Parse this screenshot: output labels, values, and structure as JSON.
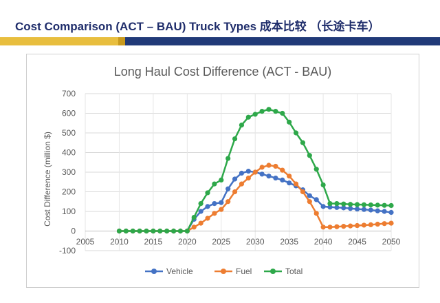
{
  "slide": {
    "title": "Cost Comparison (ACT – BAU) Truck Types 成本比较 （长途卡车）"
  },
  "chart_data": {
    "type": "line",
    "title": "Long Haul Cost Difference (ACT - BAU)",
    "xlabel": "",
    "ylabel": "Cost Difference (million $)",
    "xlim": [
      2005,
      2050
    ],
    "ylim": [
      -100,
      700
    ],
    "x_ticks": [
      "2005",
      "2010",
      "2015",
      "2020",
      "2025",
      "2030",
      "2035",
      "2040",
      "2045",
      "2050"
    ],
    "y_ticks": [
      "-100",
      "0",
      "100",
      "200",
      "300",
      "400",
      "500",
      "600",
      "700"
    ],
    "grid": "horizontal",
    "legend_position": "bottom",
    "x": [
      2010,
      2011,
      2012,
      2013,
      2014,
      2015,
      2016,
      2017,
      2018,
      2019,
      2020,
      2021,
      2022,
      2023,
      2024,
      2025,
      2026,
      2027,
      2028,
      2029,
      2030,
      2031,
      2032,
      2033,
      2034,
      2035,
      2036,
      2037,
      2038,
      2039,
      2040,
      2041,
      2042,
      2043,
      2044,
      2045,
      2046,
      2047,
      2048,
      2049,
      2050
    ],
    "series": [
      {
        "name": "Vehicle",
        "color": "#4472c4",
        "values": [
          0,
          0,
          0,
          0,
          0,
          0,
          0,
          0,
          0,
          0,
          0,
          60,
          100,
          125,
          140,
          145,
          215,
          265,
          295,
          305,
          300,
          290,
          280,
          270,
          260,
          245,
          230,
          210,
          180,
          160,
          125,
          122,
          120,
          118,
          115,
          112,
          110,
          107,
          103,
          100,
          95
        ]
      },
      {
        "name": "Fuel",
        "color": "#ed7d31",
        "values": [
          0,
          0,
          0,
          0,
          0,
          0,
          0,
          0,
          0,
          0,
          0,
          20,
          40,
          65,
          90,
          110,
          150,
          200,
          240,
          270,
          300,
          325,
          335,
          330,
          310,
          280,
          240,
          200,
          150,
          90,
          20,
          20,
          22,
          24,
          26,
          28,
          30,
          32,
          35,
          38,
          40
        ]
      },
      {
        "name": "Total",
        "color": "#2ea84a",
        "values": [
          0,
          0,
          0,
          0,
          0,
          0,
          0,
          0,
          0,
          0,
          0,
          70,
          140,
          195,
          240,
          260,
          370,
          470,
          540,
          580,
          595,
          610,
          620,
          610,
          600,
          555,
          500,
          450,
          385,
          315,
          235,
          140,
          140,
          138,
          136,
          135,
          134,
          133,
          132,
          131,
          130
        ]
      }
    ]
  }
}
